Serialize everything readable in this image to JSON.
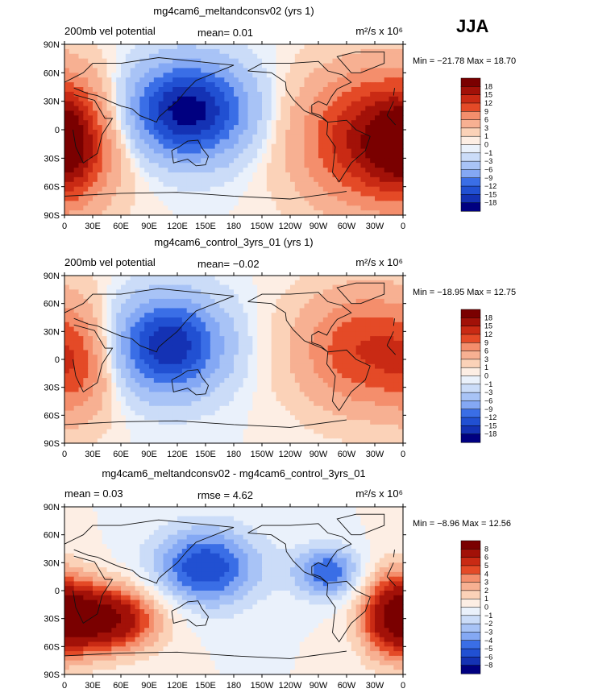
{
  "season": "JJA",
  "colors": {
    "scale": [
      "#000080",
      "#1432b4",
      "#2150d2",
      "#3a6ee6",
      "#5d8cf0",
      "#84a8f4",
      "#a8c3f6",
      "#cbdcf8",
      "#eaf1fb",
      "#fdeee4",
      "#fbd2b8",
      "#f7b092",
      "#f48e6c",
      "#ef6a47",
      "#e44a27",
      "#c92a14",
      "#a21108",
      "#7a0000"
    ],
    "coast": "#111111"
  },
  "chart_data": [
    {
      "type": "heatmap",
      "title": "mg4cam6_meltandconsv02 (yrs 1)",
      "left_label": "200mb vel potential",
      "center_label": "mean=   0.01",
      "units_label": "m²/s x 10⁶",
      "minmax": "Min = −21.78 Max =  18.70",
      "colorbar_levels": [
        "18",
        "15",
        "12",
        "9",
        "6",
        "3",
        "1",
        "0",
        "−1",
        "−3",
        "−6",
        "−9",
        "−12",
        "−15",
        "−18"
      ],
      "lat_ticks": [
        "90N",
        "60N",
        "30N",
        "0",
        "30S",
        "60S",
        "90S"
      ],
      "lon_ticks": [
        "0",
        "30E",
        "60E",
        "90E",
        "120E",
        "150E",
        "180",
        "150W",
        "120W",
        "90W",
        "60W",
        "30W",
        "0"
      ],
      "field": {
        "centers": [
          {
            "lon": 130,
            "lat": 20,
            "amp": -20,
            "sx": 45,
            "sy": 35
          },
          {
            "lon": -30,
            "lat": -10,
            "amp": 17,
            "sx": 55,
            "sy": 50
          },
          {
            "lon": 5,
            "lat": -15,
            "amp": 10,
            "sx": 25,
            "sy": 40
          }
        ]
      }
    },
    {
      "type": "heatmap",
      "title": "mg4cam6_control_3yrs_01 (yrs 1)",
      "left_label": "200mb vel potential",
      "center_label": "mean=  −0.02",
      "units_label": "m²/s x 10⁶",
      "minmax": "Min = −18.95 Max =  12.75",
      "colorbar_levels": [
        "18",
        "15",
        "12",
        "9",
        "6",
        "3",
        "1",
        "0",
        "−1",
        "−3",
        "−6",
        "−9",
        "−12",
        "−15",
        "−18"
      ],
      "lat_ticks": [
        "90N",
        "60N",
        "30N",
        "0",
        "30S",
        "60S",
        "90S"
      ],
      "lon_ticks": [
        "0",
        "30E",
        "60E",
        "90E",
        "120E",
        "150E",
        "180",
        "150W",
        "120W",
        "90W",
        "60W",
        "30W",
        "0"
      ],
      "field": {
        "centers": [
          {
            "lon": 110,
            "lat": 15,
            "amp": -18,
            "sx": 40,
            "sy": 35
          },
          {
            "lon": -40,
            "lat": 10,
            "amp": 12,
            "sx": 50,
            "sy": 45
          },
          {
            "lon": 15,
            "lat": -10,
            "amp": 6,
            "sx": 25,
            "sy": 40
          }
        ]
      }
    },
    {
      "type": "heatmap",
      "title": "mg4cam6_meltandconsv02 - mg4cam6_control_3yrs_01",
      "left_label": "mean =    0.03",
      "center_label": "rmse =    4.62",
      "units_label": "m²/s x 10⁶",
      "minmax": "Min =   −8.96 Max =   12.56",
      "colorbar_levels": [
        "8",
        "6",
        "5",
        "4",
        "3",
        "2",
        "1",
        "0",
        "−1",
        "−2",
        "−3",
        "−4",
        "−5",
        "−6",
        "−8"
      ],
      "lat_ticks": [
        "90N",
        "60N",
        "30N",
        "0",
        "30S",
        "60S",
        "90S"
      ],
      "lon_ticks": [
        "0",
        "30E",
        "60E",
        "90E",
        "120E",
        "150E",
        "180",
        "150W",
        "120W",
        "90W",
        "60W",
        "30W",
        "0"
      ],
      "field": {
        "centers": [
          {
            "lon": 150,
            "lat": 25,
            "amp": -6,
            "sx": 40,
            "sy": 30
          },
          {
            "lon": 40,
            "lat": -30,
            "amp": 9,
            "sx": 40,
            "sy": 25
          },
          {
            "lon": -80,
            "lat": 20,
            "amp": -5,
            "sx": 25,
            "sy": 20
          },
          {
            "lon": -10,
            "lat": -25,
            "amp": 6,
            "sx": 25,
            "sy": 35
          }
        ]
      }
    }
  ]
}
